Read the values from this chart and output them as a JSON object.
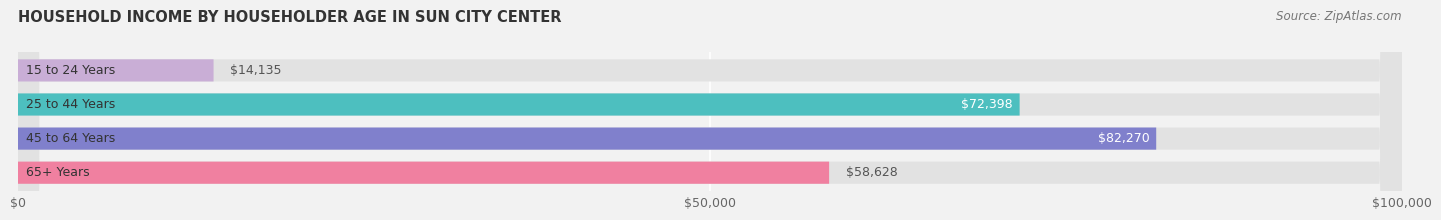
{
  "title": "HOUSEHOLD INCOME BY HOUSEHOLDER AGE IN SUN CITY CENTER",
  "source": "Source: ZipAtlas.com",
  "categories": [
    "15 to 24 Years",
    "25 to 44 Years",
    "45 to 64 Years",
    "65+ Years"
  ],
  "values": [
    14135,
    72398,
    82270,
    58628
  ],
  "bar_colors": [
    "#c9aed6",
    "#4dbfbf",
    "#8080cc",
    "#f080a0"
  ],
  "value_labels": [
    "$14,135",
    "$72,398",
    "$82,270",
    "$58,628"
  ],
  "value_label_inside": [
    false,
    true,
    true,
    false
  ],
  "xlim": [
    0,
    100000
  ],
  "xticks": [
    0,
    50000,
    100000
  ],
  "xticklabels": [
    "$0",
    "$50,000",
    "$100,000"
  ],
  "bg_color": "#f2f2f2",
  "bar_bg_color": "#e2e2e2",
  "title_fontsize": 10.5,
  "source_fontsize": 8.5,
  "bar_label_fontsize": 9,
  "tick_fontsize": 9,
  "bar_height": 0.65
}
